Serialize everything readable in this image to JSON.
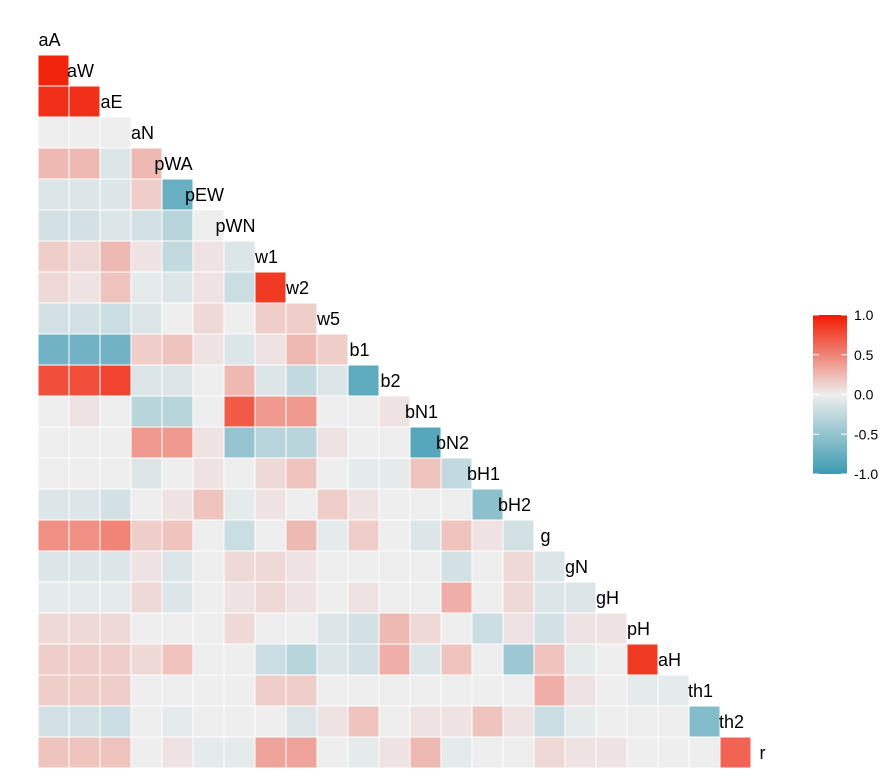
{
  "chart_data": {
    "type": "heatmap",
    "layout": "lower-triangle correlation matrix with variable names on the diagonal",
    "variables": [
      "aA",
      "aW",
      "aE",
      "aN",
      "pWA",
      "pEW",
      "pWN",
      "w1",
      "w2",
      "w5",
      "b1",
      "b2",
      "bN1",
      "bN2",
      "bH1",
      "bH2",
      "g",
      "gN",
      "gH",
      "pH",
      "aH",
      "th1",
      "th2",
      "r"
    ],
    "matrix": [
      [],
      [
        0.95
      ],
      [
        0.9,
        0.9
      ],
      [
        0.0,
        0.0,
        0.0
      ],
      [
        0.25,
        0.25,
        -0.1,
        0.25
      ],
      [
        -0.1,
        -0.1,
        -0.1,
        0.15,
        -0.75
      ],
      [
        -0.15,
        -0.15,
        -0.1,
        -0.15,
        -0.3,
        0.0
      ],
      [
        0.15,
        0.1,
        0.25,
        0.05,
        -0.25,
        0.05,
        -0.1
      ],
      [
        0.1,
        0.05,
        0.2,
        -0.05,
        -0.1,
        0.05,
        -0.2,
        0.85
      ],
      [
        -0.15,
        -0.15,
        -0.2,
        -0.1,
        0.0,
        0.1,
        0.0,
        0.15,
        0.15
      ],
      [
        -0.7,
        -0.7,
        -0.7,
        0.15,
        0.2,
        0.05,
        -0.1,
        0.05,
        0.25,
        0.15
      ],
      [
        0.75,
        0.75,
        0.8,
        -0.1,
        -0.1,
        0.0,
        0.25,
        -0.1,
        -0.25,
        -0.1,
        -0.8
      ],
      [
        0.0,
        0.05,
        0.0,
        -0.3,
        -0.3,
        0.0,
        0.7,
        0.4,
        0.4,
        0.0,
        0.0,
        0.05
      ],
      [
        0.0,
        0.0,
        0.0,
        0.4,
        0.4,
        0.05,
        -0.5,
        -0.3,
        -0.3,
        0.05,
        0.0,
        0.0,
        -0.85
      ],
      [
        0.0,
        0.0,
        0.0,
        -0.1,
        0.0,
        0.05,
        0.0,
        0.1,
        0.2,
        0.0,
        -0.05,
        -0.05,
        0.2,
        -0.25
      ],
      [
        -0.1,
        -0.1,
        -0.15,
        0.0,
        0.05,
        0.2,
        -0.05,
        0.05,
        0.0,
        0.15,
        0.05,
        0.0,
        0.0,
        0.0,
        -0.55
      ],
      [
        0.45,
        0.45,
        0.5,
        0.15,
        0.2,
        0.0,
        -0.2,
        0.0,
        0.25,
        -0.05,
        0.15,
        0.0,
        -0.1,
        0.2,
        0.05,
        -0.15
      ],
      [
        -0.1,
        -0.1,
        -0.1,
        0.05,
        -0.1,
        0.0,
        0.1,
        0.1,
        0.05,
        0.0,
        0.0,
        0.0,
        0.0,
        -0.15,
        0.0,
        0.1,
        -0.1
      ],
      [
        -0.05,
        -0.05,
        -0.05,
        0.1,
        -0.1,
        0.0,
        0.05,
        0.1,
        0.05,
        0.0,
        0.05,
        0.0,
        0.0,
        0.3,
        0.0,
        0.1,
        -0.1,
        -0.1
      ],
      [
        0.1,
        0.1,
        0.1,
        0.0,
        0.0,
        0.0,
        0.1,
        0.0,
        0.0,
        -0.1,
        -0.15,
        0.25,
        0.1,
        0.0,
        -0.2,
        0.05,
        -0.15,
        0.05,
        0.05
      ],
      [
        0.15,
        0.15,
        0.15,
        0.1,
        0.2,
        0.0,
        0.0,
        -0.2,
        -0.3,
        -0.1,
        -0.15,
        0.3,
        -0.1,
        0.2,
        0.0,
        -0.45,
        0.2,
        -0.05,
        0.0,
        0.85
      ],
      [
        0.15,
        0.15,
        0.15,
        0.0,
        0.0,
        0.0,
        0.0,
        0.15,
        0.15,
        0.0,
        0.0,
        0.0,
        0.0,
        0.0,
        0.0,
        0.0,
        0.3,
        0.05,
        0.0,
        -0.05,
        -0.05
      ],
      [
        -0.15,
        -0.15,
        -0.2,
        0.0,
        -0.05,
        0.0,
        0.0,
        0.0,
        -0.1,
        0.05,
        0.2,
        0.0,
        0.05,
        0.05,
        0.2,
        0.05,
        -0.2,
        -0.05,
        0.0,
        0.0,
        0.0,
        -0.6
      ],
      [
        0.2,
        0.2,
        0.2,
        0.0,
        0.05,
        -0.05,
        -0.05,
        0.35,
        0.35,
        0.0,
        -0.05,
        0.05,
        0.25,
        -0.05,
        0.0,
        0.0,
        0.1,
        0.05,
        0.05,
        0.0,
        0.0,
        0.0,
        0.65
      ]
    ],
    "color_scale": {
      "low": "#3B9AB2",
      "mid": "#EEEEEE",
      "high": "#F21A00",
      "min": -1,
      "max": 1
    },
    "legend": {
      "position": "right",
      "tick_labels": [
        "1.0",
        "0.5",
        "0.0",
        "-0.5",
        "-1.0"
      ],
      "ticks": [
        1.0,
        0.5,
        0.0,
        -0.5,
        -1.0
      ]
    }
  }
}
